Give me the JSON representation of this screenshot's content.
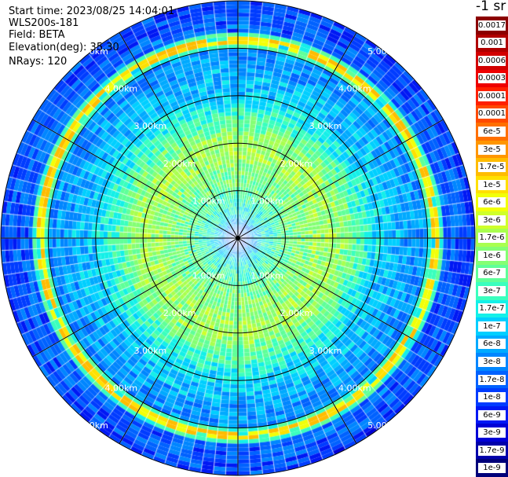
{
  "header": {
    "start_time": "Start time: 2023/08/25 14:04:01",
    "instrument": "WLS200s-181",
    "field": "Field: BETA",
    "elevation": "Elevation(deg): 35.30",
    "nrays": "NRays: 120"
  },
  "colorbar": {
    "title": "-1 sr",
    "levels": [
      {
        "label": "0.0017",
        "color": "#8c0000"
      },
      {
        "label": "0.001",
        "color": "#b00000"
      },
      {
        "label": "0.0006",
        "color": "#d20000"
      },
      {
        "label": "0.0003",
        "color": "#ee0000"
      },
      {
        "label": "0.00017",
        "color": "#ff2000"
      },
      {
        "label": "0.0001",
        "color": "#ff4a00"
      },
      {
        "label": "6e-5",
        "color": "#ff7000"
      },
      {
        "label": "3e-5",
        "color": "#ff9600"
      },
      {
        "label": "1.7e-5",
        "color": "#ffbc00"
      },
      {
        "label": "1e-5",
        "color": "#ffe000"
      },
      {
        "label": "6e-6",
        "color": "#f2ff08"
      },
      {
        "label": "3e-6",
        "color": "#cfff2a"
      },
      {
        "label": "1.7e-6",
        "color": "#a9ff4f"
      },
      {
        "label": "1e-6",
        "color": "#84ff74"
      },
      {
        "label": "6e-7",
        "color": "#5fff99"
      },
      {
        "label": "3e-7",
        "color": "#3affbe"
      },
      {
        "label": "1.7e-7",
        "color": "#14f0e8"
      },
      {
        "label": "1e-7",
        "color": "#00cfff"
      },
      {
        "label": "6e-8",
        "color": "#00aaff"
      },
      {
        "label": "3e-8",
        "color": "#0086ff"
      },
      {
        "label": "1.7e-8",
        "color": "#0062ff"
      },
      {
        "label": "1e-8",
        "color": "#003cff"
      },
      {
        "label": "6e-9",
        "color": "#0018f4"
      },
      {
        "label": "3e-9",
        "color": "#0000d6"
      },
      {
        "label": "1.7e-9",
        "color": "#0000aa"
      },
      {
        "label": "1e-9",
        "color": "#00007a"
      }
    ]
  },
  "chart_data": {
    "type": "heatmap",
    "projection": "polar PPI",
    "field": "BETA",
    "units": "-1 sr",
    "elevation_deg": 35.3,
    "nrays": 120,
    "range_max_km": 5.0,
    "range_rings_km": [
      1.0,
      2.0,
      3.0,
      4.0,
      5.0
    ],
    "ring_labels": [
      "1.00km",
      "2.00km",
      "3.00km",
      "4.00km",
      "5.00km"
    ],
    "spoke_azimuths_deg": [
      0,
      30,
      60,
      90,
      120,
      150,
      180,
      210,
      240,
      270,
      300,
      330
    ],
    "range_profile": [
      {
        "range_km": 0.1,
        "level": "1e-8"
      },
      {
        "range_km": 0.5,
        "level": "1.7e-7"
      },
      {
        "range_km": 1.0,
        "level": "6e-7"
      },
      {
        "range_km": 1.5,
        "level": "1e-6"
      },
      {
        "range_km": 2.0,
        "level": "1.7e-6"
      },
      {
        "range_km": 3.0,
        "level": "1e-7"
      },
      {
        "range_km": 3.5,
        "level": "6e-8"
      },
      {
        "range_km": 4.0,
        "level": "3e-8"
      },
      {
        "range_km": 4.2,
        "level": "1e-5"
      },
      {
        "range_km": 4.5,
        "level": "1.7e-8"
      },
      {
        "range_km": 5.0,
        "level": "1e-8"
      }
    ],
    "enhanced_layer_km": 4.2
  }
}
